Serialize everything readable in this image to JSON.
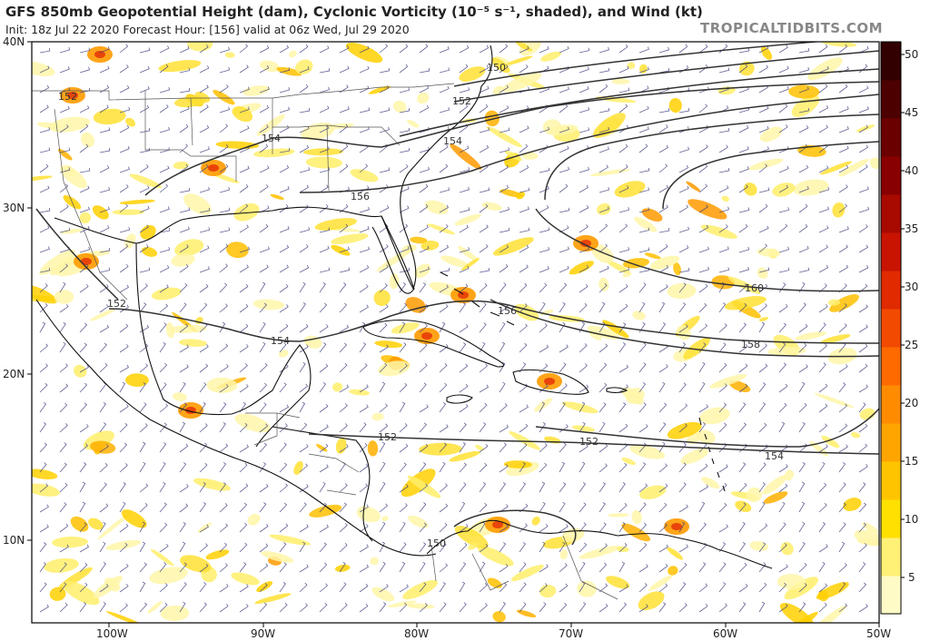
{
  "header": {
    "title": "GFS 850mb Geopotential Height (dam), Cyclonic Vorticity (10⁻⁵ s⁻¹, shaded), and Wind (kt)",
    "subtitle": "Init: 18z Jul 22 2020   Forecast Hour: [156]   valid at 06z Wed, Jul 29 2020",
    "brand": "TROPICALTIDBITS.COM"
  },
  "axes": {
    "lat_labels": [
      "40N",
      "30N",
      "20N",
      "10N"
    ],
    "lon_labels": [
      "100W",
      "90W",
      "80W",
      "70W",
      "60W",
      "50W"
    ]
  },
  "colorbar": {
    "ticks": [
      "50",
      "45",
      "40",
      "35",
      "30",
      "25",
      "20",
      "15",
      "10",
      "5"
    ],
    "colors": [
      "#fffbc7",
      "#fff176",
      "#ffe000",
      "#ffc400",
      "#ffa500",
      "#ff8c00",
      "#ff6a00",
      "#f24a00",
      "#e02a00",
      "#c81400",
      "#a80a00",
      "#880000",
      "#6b0000",
      "#4d0000",
      "#320000"
    ]
  },
  "contours": {
    "labels": [
      "150",
      "152",
      "154",
      "156",
      "158",
      "160",
      "152",
      "154",
      "152",
      "152",
      "154",
      "150",
      "156"
    ]
  },
  "colors": {
    "contour": "#333333",
    "coast": "#111111",
    "border": "#555555",
    "barb": "#3a3a7a"
  }
}
